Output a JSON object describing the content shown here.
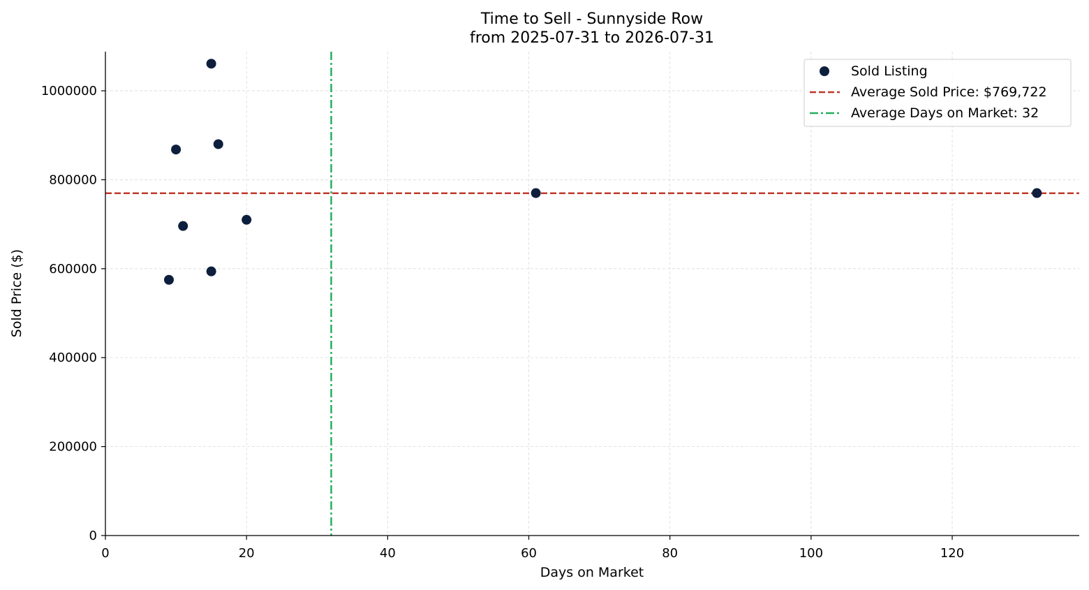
{
  "chart_data": {
    "type": "scatter",
    "title": "Time to Sell - Sunnyside Row",
    "subtitle": "from 2025-07-31 to 2026-07-31",
    "xlabel": "Days on Market",
    "ylabel": "Sold Price ($)",
    "xlim": [
      0,
      138
    ],
    "ylim": [
      0,
      1088000
    ],
    "x_ticks": [
      0,
      20,
      40,
      60,
      80,
      100,
      120
    ],
    "y_ticks": [
      0,
      200000,
      400000,
      600000,
      800000,
      1000000
    ],
    "grid": true,
    "legend_position": "top-right",
    "series": [
      {
        "name": "Sold Listing",
        "color": "#0d1f3c",
        "points": [
          {
            "x": 9,
            "y": 575000
          },
          {
            "x": 10,
            "y": 868000
          },
          {
            "x": 11,
            "y": 696000
          },
          {
            "x": 15,
            "y": 1061000
          },
          {
            "x": 15,
            "y": 594000
          },
          {
            "x": 16,
            "y": 880000
          },
          {
            "x": 20,
            "y": 710000
          },
          {
            "x": 61,
            "y": 770000
          },
          {
            "x": 132,
            "y": 770000
          }
        ]
      }
    ],
    "reference_lines": [
      {
        "orientation": "horizontal",
        "value": 769722,
        "label": "Average Sold Price: $769,722",
        "color": "#c0392b",
        "style": "dashed"
      },
      {
        "orientation": "vertical",
        "value": 32,
        "label": "Average Days on Market: 32",
        "color": "#27ae60",
        "style": "dashdot"
      }
    ]
  }
}
